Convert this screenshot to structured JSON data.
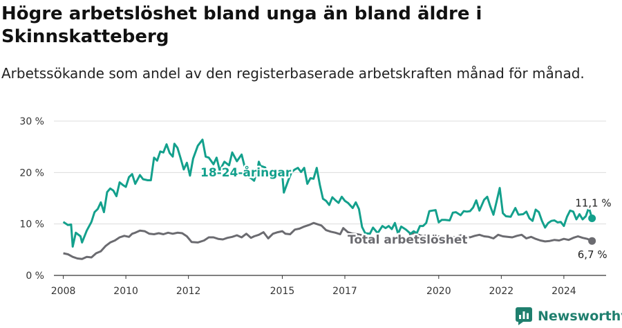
{
  "header": {
    "title": "Högre arbetslöshet bland unga än bland äldre i Skinnskatteberg",
    "subtitle": "Arbetssökande som andel av den registerbaserade arbetskraften månad för månad."
  },
  "brand": {
    "name": "Newsworthy"
  },
  "colors": {
    "young": "#13a08c",
    "total": "#6b6b70",
    "grid": "#dcdcdc",
    "axis": "#333333",
    "brand": "#1f7f6e"
  },
  "chart_data": {
    "type": "line",
    "ylim": [
      0,
      30
    ],
    "yticks": [
      0,
      10,
      20,
      30
    ],
    "ytick_labels": [
      "0 %",
      "10 %",
      "20 %",
      "30 %"
    ],
    "xlim": [
      2007.7,
      2025.35
    ],
    "xticks": [
      2008,
      2010,
      2012,
      2015,
      2017,
      2020,
      2022,
      2024
    ],
    "xtick_labels": [
      "2008",
      "2010",
      "2012",
      "2015",
      "2017",
      "2020",
      "2022",
      "2024"
    ],
    "grid": true,
    "legend": "none",
    "series": [
      {
        "name": "18-24-åringar",
        "end_label": "11,1 %",
        "points": [
          [
            2008.0,
            10.4
          ],
          [
            2008.15,
            9.8
          ],
          [
            2008.25,
            9.9
          ],
          [
            2008.3,
            5.6
          ],
          [
            2008.4,
            8.3
          ],
          [
            2008.55,
            7.6
          ],
          [
            2008.6,
            6.4
          ],
          [
            2008.75,
            8.7
          ],
          [
            2008.9,
            10.4
          ],
          [
            2009.0,
            12.3
          ],
          [
            2009.1,
            12.9
          ],
          [
            2009.2,
            14.2
          ],
          [
            2009.3,
            12.3
          ],
          [
            2009.4,
            16.2
          ],
          [
            2009.5,
            16.9
          ],
          [
            2009.6,
            16.5
          ],
          [
            2009.7,
            15.4
          ],
          [
            2009.8,
            18.1
          ],
          [
            2009.9,
            17.6
          ],
          [
            2010.0,
            17.2
          ],
          [
            2010.1,
            19.1
          ],
          [
            2010.2,
            19.7
          ],
          [
            2010.3,
            17.8
          ],
          [
            2010.45,
            19.5
          ],
          [
            2010.55,
            18.7
          ],
          [
            2010.7,
            18.5
          ],
          [
            2010.8,
            18.5
          ],
          [
            2010.9,
            22.9
          ],
          [
            2011.0,
            22.3
          ],
          [
            2011.1,
            24.1
          ],
          [
            2011.2,
            23.9
          ],
          [
            2011.3,
            25.5
          ],
          [
            2011.4,
            23.8
          ],
          [
            2011.5,
            23.1
          ],
          [
            2011.55,
            25.6
          ],
          [
            2011.65,
            24.8
          ],
          [
            2011.75,
            22.8
          ],
          [
            2011.85,
            20.6
          ],
          [
            2011.95,
            21.9
          ],
          [
            2012.05,
            19.4
          ],
          [
            2012.15,
            22.7
          ],
          [
            2012.3,
            25.2
          ],
          [
            2012.45,
            26.4
          ],
          [
            2012.55,
            23.1
          ],
          [
            2012.65,
            22.9
          ],
          [
            2012.8,
            21.6
          ],
          [
            2012.9,
            22.9
          ],
          [
            2013.0,
            20.4
          ],
          [
            2013.15,
            22.1
          ],
          [
            2013.3,
            21.4
          ],
          [
            2013.4,
            23.9
          ],
          [
            2013.55,
            22.2
          ],
          [
            2013.7,
            23.5
          ],
          [
            2013.8,
            21.1
          ],
          [
            2013.9,
            19.2
          ],
          [
            2014.0,
            18.9
          ],
          [
            2014.1,
            18.4
          ],
          [
            2014.2,
            20.3
          ],
          [
            2014.25,
            22.1
          ],
          [
            2014.3,
            21.3
          ],
          [
            2014.45,
            21.0
          ],
          [
            2014.55,
            19.4
          ],
          [
            2014.65,
            18.8
          ],
          [
            2014.75,
            19.9
          ],
          [
            2014.9,
            20.5
          ],
          [
            2015.0,
            19.5
          ],
          [
            2015.05,
            16.1
          ],
          [
            2015.2,
            18.6
          ],
          [
            2015.3,
            20.1
          ],
          [
            2015.4,
            20.6
          ],
          [
            2015.5,
            20.9
          ],
          [
            2015.6,
            20.1
          ],
          [
            2015.7,
            20.9
          ],
          [
            2015.8,
            17.8
          ],
          [
            2015.9,
            18.9
          ],
          [
            2016.0,
            18.8
          ],
          [
            2016.1,
            20.9
          ],
          [
            2016.2,
            17.6
          ],
          [
            2016.3,
            14.9
          ],
          [
            2016.4,
            14.5
          ],
          [
            2016.5,
            13.7
          ],
          [
            2016.6,
            15.2
          ],
          [
            2016.7,
            14.6
          ],
          [
            2016.8,
            14.1
          ],
          [
            2016.9,
            15.3
          ],
          [
            2017.0,
            14.5
          ],
          [
            2017.1,
            14.1
          ],
          [
            2017.25,
            13.1
          ],
          [
            2017.35,
            14.2
          ],
          [
            2017.45,
            12.9
          ],
          [
            2017.55,
            9.4
          ],
          [
            2017.65,
            8.2
          ],
          [
            2017.8,
            8.1
          ],
          [
            2017.9,
            9.3
          ],
          [
            2018.05,
            8.2
          ],
          [
            2018.2,
            9.6
          ],
          [
            2018.3,
            9.2
          ],
          [
            2018.4,
            9.6
          ],
          [
            2018.5,
            9.0
          ],
          [
            2018.6,
            10.2
          ],
          [
            2018.7,
            8.1
          ],
          [
            2018.8,
            9.5
          ],
          [
            2018.95,
            8.9
          ],
          [
            2019.1,
            8.1
          ],
          [
            2019.2,
            8.6
          ],
          [
            2019.3,
            8.2
          ],
          [
            2019.4,
            9.6
          ],
          [
            2019.5,
            9.6
          ],
          [
            2019.6,
            10.2
          ],
          [
            2019.7,
            12.5
          ],
          [
            2019.8,
            12.6
          ],
          [
            2019.9,
            12.7
          ],
          [
            2020.0,
            10.3
          ],
          [
            2020.1,
            10.8
          ],
          [
            2020.2,
            10.8
          ],
          [
            2020.35,
            10.7
          ],
          [
            2020.45,
            12.2
          ],
          [
            2020.55,
            12.3
          ],
          [
            2020.7,
            11.7
          ],
          [
            2020.8,
            12.5
          ],
          [
            2020.9,
            12.4
          ],
          [
            2021.0,
            12.5
          ],
          [
            2021.1,
            13.2
          ],
          [
            2021.2,
            14.6
          ],
          [
            2021.3,
            12.6
          ],
          [
            2021.45,
            14.7
          ],
          [
            2021.55,
            15.3
          ],
          [
            2021.65,
            13.4
          ],
          [
            2021.75,
            11.8
          ],
          [
            2021.85,
            14.4
          ],
          [
            2021.95,
            17.0
          ],
          [
            2022.05,
            12.1
          ],
          [
            2022.15,
            11.5
          ],
          [
            2022.3,
            11.4
          ],
          [
            2022.45,
            13.1
          ],
          [
            2022.55,
            11.8
          ],
          [
            2022.7,
            11.9
          ],
          [
            2022.8,
            12.4
          ],
          [
            2022.9,
            11.1
          ],
          [
            2023.0,
            10.6
          ],
          [
            2023.1,
            12.8
          ],
          [
            2023.2,
            12.3
          ],
          [
            2023.3,
            10.6
          ],
          [
            2023.4,
            9.3
          ],
          [
            2023.5,
            10.2
          ],
          [
            2023.6,
            10.6
          ],
          [
            2023.7,
            10.7
          ],
          [
            2023.8,
            10.3
          ],
          [
            2023.9,
            10.4
          ],
          [
            2024.0,
            9.6
          ],
          [
            2024.1,
            11.4
          ],
          [
            2024.2,
            12.6
          ],
          [
            2024.3,
            12.4
          ],
          [
            2024.4,
            10.9
          ],
          [
            2024.5,
            11.9
          ],
          [
            2024.6,
            10.9
          ],
          [
            2024.7,
            11.5
          ],
          [
            2024.8,
            13.2
          ],
          [
            2024.9,
            11.1
          ]
        ]
      },
      {
        "name": "Total arbetslöshet",
        "end_label": "6,7 %",
        "points": [
          [
            2008.0,
            4.3
          ],
          [
            2008.15,
            4.1
          ],
          [
            2008.3,
            3.6
          ],
          [
            2008.45,
            3.3
          ],
          [
            2008.6,
            3.2
          ],
          [
            2008.75,
            3.6
          ],
          [
            2008.9,
            3.5
          ],
          [
            2009.05,
            4.3
          ],
          [
            2009.2,
            4.7
          ],
          [
            2009.35,
            5.7
          ],
          [
            2009.5,
            6.4
          ],
          [
            2009.65,
            6.8
          ],
          [
            2009.8,
            7.4
          ],
          [
            2009.95,
            7.7
          ],
          [
            2010.1,
            7.5
          ],
          [
            2010.2,
            8.1
          ],
          [
            2010.3,
            8.3
          ],
          [
            2010.45,
            8.7
          ],
          [
            2010.6,
            8.6
          ],
          [
            2010.75,
            8.1
          ],
          [
            2010.9,
            8.0
          ],
          [
            2011.05,
            8.2
          ],
          [
            2011.2,
            8.0
          ],
          [
            2011.35,
            8.3
          ],
          [
            2011.5,
            8.1
          ],
          [
            2011.65,
            8.3
          ],
          [
            2011.8,
            8.2
          ],
          [
            2011.95,
            7.6
          ],
          [
            2012.1,
            6.5
          ],
          [
            2012.3,
            6.4
          ],
          [
            2012.5,
            6.8
          ],
          [
            2012.65,
            7.4
          ],
          [
            2012.8,
            7.4
          ],
          [
            2012.95,
            7.1
          ],
          [
            2013.1,
            7.0
          ],
          [
            2013.25,
            7.3
          ],
          [
            2013.4,
            7.5
          ],
          [
            2013.55,
            7.8
          ],
          [
            2013.7,
            7.4
          ],
          [
            2013.85,
            8.1
          ],
          [
            2014.0,
            7.3
          ],
          [
            2014.1,
            7.6
          ],
          [
            2014.25,
            7.9
          ],
          [
            2014.4,
            8.4
          ],
          [
            2014.55,
            7.2
          ],
          [
            2014.7,
            8.1
          ],
          [
            2014.85,
            8.4
          ],
          [
            2015.0,
            8.6
          ],
          [
            2015.1,
            8.1
          ],
          [
            2015.25,
            8.0
          ],
          [
            2015.4,
            8.9
          ],
          [
            2015.55,
            9.1
          ],
          [
            2015.7,
            9.5
          ],
          [
            2015.85,
            9.8
          ],
          [
            2016.0,
            10.2
          ],
          [
            2016.1,
            10.0
          ],
          [
            2016.25,
            9.7
          ],
          [
            2016.4,
            8.8
          ],
          [
            2016.55,
            8.5
          ],
          [
            2016.7,
            8.3
          ],
          [
            2016.85,
            8.0
          ],
          [
            2016.95,
            9.2
          ],
          [
            2017.1,
            8.4
          ],
          [
            2017.25,
            8.1
          ],
          [
            2017.4,
            8.0
          ],
          [
            2017.55,
            7.8
          ]
        ],
        "points_after_label": [
          [
            2019.05,
            8.0
          ],
          [
            2019.2,
            8.2
          ],
          [
            2019.35,
            7.9
          ],
          [
            2019.5,
            7.6
          ],
          [
            2019.65,
            7.9
          ],
          [
            2019.8,
            7.8
          ],
          [
            2019.95,
            7.6
          ],
          [
            2020.1,
            7.5
          ],
          [
            2020.25,
            7.6
          ],
          [
            2020.4,
            7.5
          ],
          [
            2020.55,
            7.4
          ],
          [
            2020.7,
            7.8
          ],
          [
            2020.85,
            7.6
          ],
          [
            2021.0,
            7.4
          ],
          [
            2021.15,
            7.7
          ],
          [
            2021.3,
            7.9
          ],
          [
            2021.45,
            7.6
          ],
          [
            2021.6,
            7.5
          ],
          [
            2021.75,
            7.2
          ],
          [
            2021.9,
            7.9
          ],
          [
            2022.05,
            7.6
          ],
          [
            2022.2,
            7.5
          ],
          [
            2022.35,
            7.4
          ],
          [
            2022.5,
            7.7
          ],
          [
            2022.65,
            7.9
          ],
          [
            2022.8,
            7.2
          ],
          [
            2022.95,
            7.5
          ],
          [
            2023.1,
            7.1
          ],
          [
            2023.25,
            6.8
          ],
          [
            2023.4,
            6.6
          ],
          [
            2023.55,
            6.7
          ],
          [
            2023.7,
            6.9
          ],
          [
            2023.85,
            6.8
          ],
          [
            2024.0,
            7.1
          ],
          [
            2024.15,
            6.9
          ],
          [
            2024.3,
            7.3
          ],
          [
            2024.45,
            7.6
          ],
          [
            2024.6,
            7.3
          ],
          [
            2024.75,
            7.1
          ],
          [
            2024.9,
            6.7
          ]
        ]
      }
    ]
  }
}
